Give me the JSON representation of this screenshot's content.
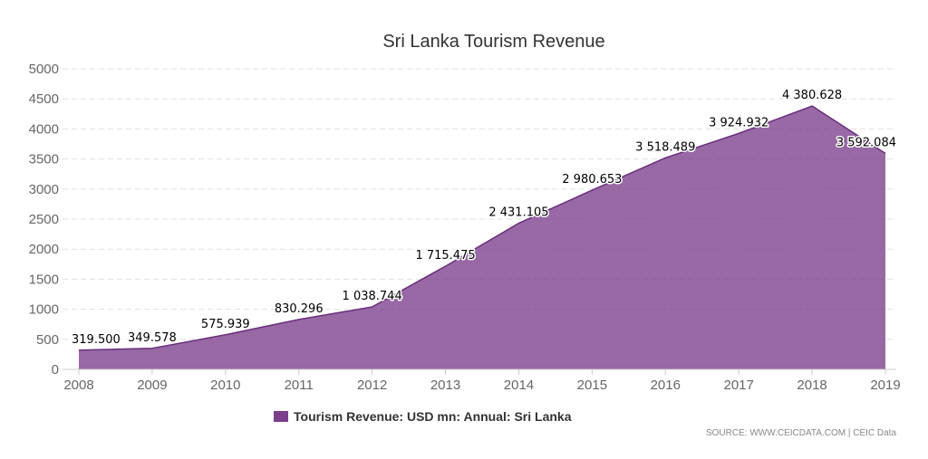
{
  "chart_data": {
    "type": "area",
    "title": "Sri Lanka Tourism Revenue",
    "x": [
      "2008",
      "2009",
      "2010",
      "2011",
      "2012",
      "2013",
      "2014",
      "2015",
      "2016",
      "2017",
      "2018",
      "2019"
    ],
    "series": [
      {
        "name": "Tourism Revenue: USD mn: Annual: Sri Lanka",
        "values": [
          319.5,
          349.578,
          575.939,
          830.296,
          1038.744,
          1715.475,
          2431.105,
          2980.653,
          3518.489,
          3924.932,
          4380.628,
          3592.084
        ],
        "labels": [
          "319.500",
          "349.578",
          "575.939",
          "830.296",
          "1 038.744",
          "1 715.475",
          "2 431.105",
          "2 980.653",
          "3 518.489",
          "3 924.932",
          "4 380.628",
          "3 592.084"
        ],
        "color": "#7b3f8c"
      }
    ],
    "yticks": [
      "0",
      "500",
      "1000",
      "1500",
      "2000",
      "2500",
      "3000",
      "3500",
      "4000",
      "4500",
      "5000"
    ],
    "ylim": [
      0,
      5000
    ],
    "grid": true,
    "legend": "bottom-center",
    "source": "SOURCE: WWW.CEICDATA.COM | CEIC Data"
  },
  "colors": {
    "area_fill": "#7b3f8c",
    "area_line": "#6a2f7c",
    "grid": "#e0e0e0",
    "axis": "#cccccc"
  }
}
